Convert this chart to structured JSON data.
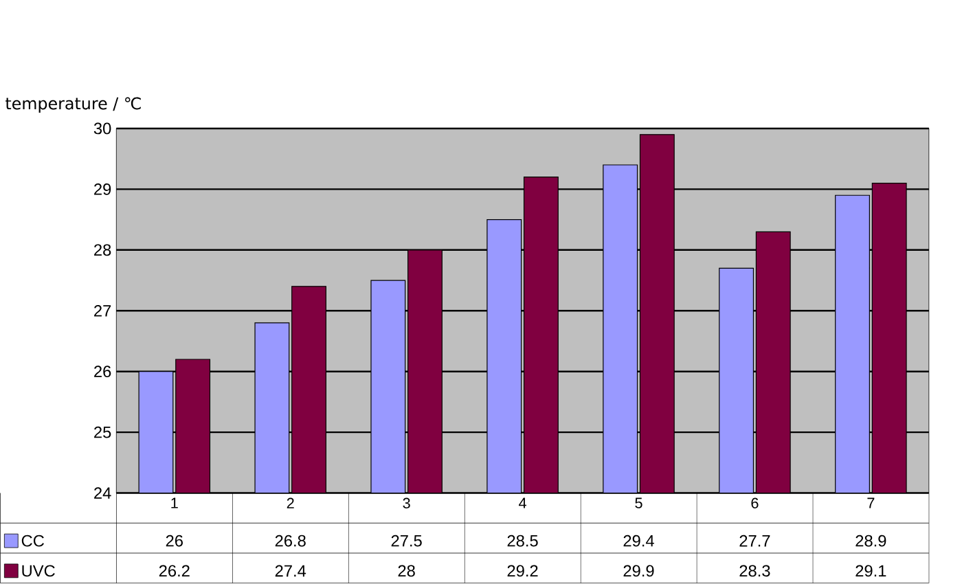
{
  "chart_data": {
    "type": "bar",
    "ylabel": "temperature / ℃",
    "categories": [
      "1",
      "2",
      "3",
      "4",
      "5",
      "6",
      "7"
    ],
    "series": [
      {
        "name": "CC",
        "color": "#9999ff",
        "values": [
          26,
          26.8,
          27.5,
          28.5,
          29.4,
          27.7,
          28.9
        ]
      },
      {
        "name": "UVC",
        "color": "#800040",
        "values": [
          26.2,
          27.4,
          28,
          29.2,
          29.9,
          28.3,
          29.1
        ]
      }
    ],
    "ylim": [
      24,
      30
    ],
    "yticks": [
      24,
      25,
      26,
      27,
      28,
      29,
      30
    ],
    "grid": "y",
    "legend": "bottom",
    "data_labels": true
  }
}
